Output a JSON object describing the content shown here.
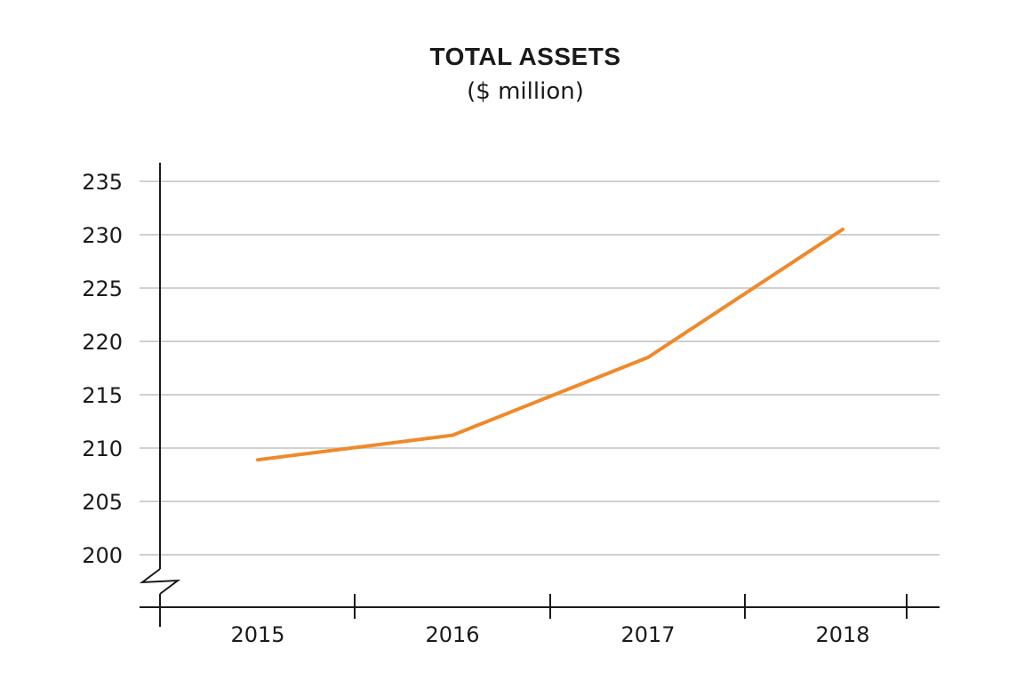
{
  "chart_data": {
    "type": "line",
    "title": "TOTAL ASSETS",
    "subtitle": "($ million)",
    "xlabel": "",
    "ylabel": "",
    "categories": [
      "2015",
      "2016",
      "2017",
      "2018"
    ],
    "series": [
      {
        "values": [
          208.9,
          211.2,
          218.5,
          230.5
        ]
      }
    ],
    "yticks": [
      "200",
      "205",
      "210",
      "215",
      "220",
      "225",
      "230",
      "235"
    ],
    "ylim": [
      200,
      235
    ],
    "axis_break": true,
    "grid": true,
    "legend": "none",
    "colors": {
      "line": "#f0892a",
      "grid": "#d0d0d0",
      "axis": "#1a1a1a"
    }
  }
}
